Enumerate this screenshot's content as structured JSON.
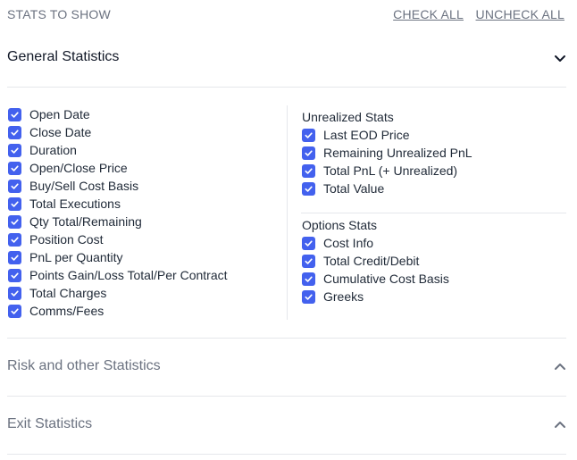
{
  "header": {
    "title": "STATS TO SHOW",
    "check_all": "CHECK ALL",
    "uncheck_all": "UNCHECK ALL"
  },
  "sections": {
    "general": {
      "title": "General Statistics",
      "state": "expanded",
      "icon": "chevron-down-icon"
    },
    "risk": {
      "title": "Risk and other Statistics",
      "state": "collapsed",
      "icon": "chevron-up-icon"
    },
    "exit": {
      "title": "Exit Statistics",
      "state": "collapsed",
      "icon": "chevron-up-icon"
    }
  },
  "general_left": [
    {
      "label": "Open Date",
      "checked": true
    },
    {
      "label": "Close Date",
      "checked": true
    },
    {
      "label": "Duration",
      "checked": true
    },
    {
      "label": "Open/Close Price",
      "checked": true
    },
    {
      "label": "Buy/Sell Cost Basis",
      "checked": true
    },
    {
      "label": "Total Executions",
      "checked": true
    },
    {
      "label": "Qty Total/Remaining",
      "checked": true
    },
    {
      "label": "Position Cost",
      "checked": true
    },
    {
      "label": "PnL per Quantity",
      "checked": true
    },
    {
      "label": "Points Gain/Loss Total/Per Contract",
      "checked": true
    },
    {
      "label": "Total Charges",
      "checked": true
    },
    {
      "label": "Comms/Fees",
      "checked": true
    }
  ],
  "unrealized": {
    "title": "Unrealized Stats",
    "items": [
      {
        "label": "Last EOD Price",
        "checked": true
      },
      {
        "label": "Remaining Unrealized PnL",
        "checked": true
      },
      {
        "label": "Total PnL (+ Unrealized)",
        "checked": true
      },
      {
        "label": "Total Value",
        "checked": true
      }
    ]
  },
  "options": {
    "title": "Options Stats",
    "items": [
      {
        "label": "Cost Info",
        "checked": true
      },
      {
        "label": "Total Credit/Debit",
        "checked": true
      },
      {
        "label": "Cumulative Cost Basis",
        "checked": true
      },
      {
        "label": "Greeks",
        "checked": true
      }
    ]
  },
  "colors": {
    "checkbox": "#4361ee",
    "muted": "#6b7280",
    "text": "#1f2937",
    "divider": "#e5e7eb"
  }
}
